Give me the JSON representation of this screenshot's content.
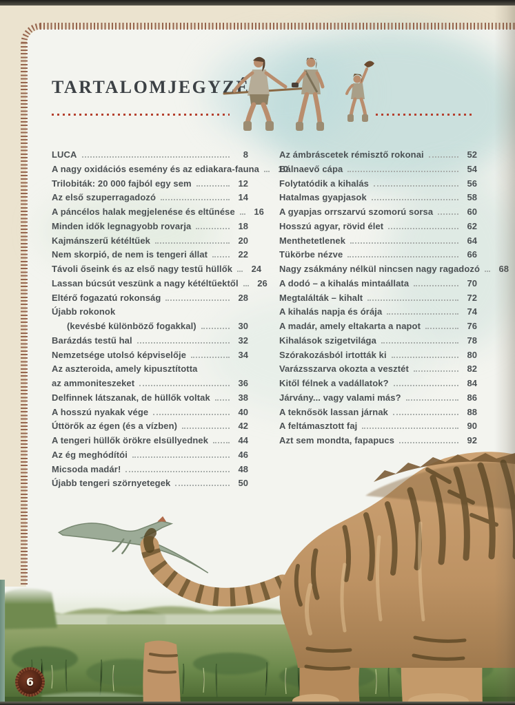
{
  "header": {
    "title": "TARTALOMJEGYZÉK"
  },
  "footer": {
    "page_number": "6"
  },
  "colors": {
    "paper_margin": "#ebe3cf",
    "page_background": "#f3f4ef",
    "stitch_border": "#96654e",
    "accent_dotted_line": "#b5402e",
    "text": "#4b5053",
    "badge": "#5d2b1b"
  },
  "illustrations": [
    {
      "name": "prehistoric-humans-illustration",
      "desc": "three early humans walking with spear and tools"
    },
    {
      "name": "pterosaur-illustration",
      "desc": "pterosaur gliding"
    },
    {
      "name": "grassland-illustration",
      "desc": "misty green marsh grassland panorama"
    },
    {
      "name": "sabertooth-cat-illustration",
      "desc": "hindquarters and curled tail of a striped sabertooth cat"
    },
    {
      "name": "ammonite-page-badge",
      "desc": "fossil-like circle holding the page number"
    }
  ],
  "toc": {
    "left": [
      {
        "label": "LUCA",
        "page": "8",
        "leader": true,
        "indent": false
      },
      {
        "label": "A nagy oxidációs esemény és az ediakara-fauna",
        "page": "10",
        "leader": true,
        "indent": false
      },
      {
        "label": "Trilobiták: 20 000 fajból egy sem",
        "page": "12",
        "leader": true,
        "indent": false
      },
      {
        "label": "Az első szuperragadozó",
        "page": "14",
        "leader": true,
        "indent": false
      },
      {
        "label": "A páncélos halak megjelenése és eltűnése",
        "page": "16",
        "leader": true,
        "indent": false
      },
      {
        "label": "Minden idők legnagyobb rovarja",
        "page": "18",
        "leader": true,
        "indent": false
      },
      {
        "label": "Kajmánszerű kétéltűek",
        "page": "20",
        "leader": true,
        "indent": false
      },
      {
        "label": "Nem skorpió, de nem is tengeri állat",
        "page": "22",
        "leader": true,
        "indent": false
      },
      {
        "label": "Távoli őseink és az első nagy testű hüllők",
        "page": "24",
        "leader": true,
        "indent": false
      },
      {
        "label": "Lassan búcsút veszünk a nagy kétéltűektől",
        "page": "26",
        "leader": true,
        "indent": false
      },
      {
        "label": "Eltérő fogazatú rokonság",
        "page": "28",
        "leader": true,
        "indent": false
      },
      {
        "label": "Újabb rokonok",
        "page": "",
        "leader": false,
        "indent": false
      },
      {
        "label": "(kevésbé különböző fogakkal)",
        "page": "30",
        "leader": true,
        "indent": true
      },
      {
        "label": "Barázdás testű hal",
        "page": "32",
        "leader": true,
        "indent": false
      },
      {
        "label": "Nemzetsége utolsó képviselője",
        "page": "34",
        "leader": true,
        "indent": false
      },
      {
        "label": "Az aszteroida, amely kipusztította",
        "page": "",
        "leader": false,
        "indent": false
      },
      {
        "label": "az ammoniteszeket",
        "page": "36",
        "leader": true,
        "indent": false
      },
      {
        "label": "Delfinnek látszanak, de hüllők voltak",
        "page": "38",
        "leader": true,
        "indent": false
      },
      {
        "label": "A hosszú nyakak vége",
        "page": "40",
        "leader": true,
        "indent": false
      },
      {
        "label": "Úttörők az égen (és a vízben)",
        "page": "42",
        "leader": true,
        "indent": false
      },
      {
        "label": "A tengeri hüllők örökre elsüllyednek",
        "page": "44",
        "leader": true,
        "indent": false
      },
      {
        "label": "Az ég meghódítói",
        "page": "46",
        "leader": true,
        "indent": false
      },
      {
        "label": "Micsoda madár!",
        "page": "48",
        "leader": true,
        "indent": false
      },
      {
        "label": "Újabb tengeri szörnyetegek",
        "page": "50",
        "leader": true,
        "indent": false
      }
    ],
    "right": [
      {
        "label": "Az ámbráscetek rémisztő rokonai",
        "page": "52",
        "leader": true,
        "indent": false
      },
      {
        "label": "Bálnaevő cápa",
        "page": "54",
        "leader": true,
        "indent": false
      },
      {
        "label": "Folytatódik a kihalás",
        "page": "56",
        "leader": true,
        "indent": false
      },
      {
        "label": "Hatalmas gyapjasok",
        "page": "58",
        "leader": true,
        "indent": false
      },
      {
        "label": "A gyapjas orrszarvú szomorú sorsa",
        "page": "60",
        "leader": true,
        "indent": false
      },
      {
        "label": "Hosszú agyar, rövid élet",
        "page": "62",
        "leader": true,
        "indent": false
      },
      {
        "label": "Menthetetlenek",
        "page": "64",
        "leader": true,
        "indent": false
      },
      {
        "label": "Tükörbe nézve",
        "page": "66",
        "leader": true,
        "indent": false
      },
      {
        "label": "Nagy zsákmány nélkül nincsen nagy ragadozó",
        "page": "68",
        "leader": true,
        "indent": false
      },
      {
        "label": "A dodó – a kihalás mintaállata",
        "page": "70",
        "leader": true,
        "indent": false
      },
      {
        "label": "Megtalálták – kihalt",
        "page": "72",
        "leader": true,
        "indent": false
      },
      {
        "label": "A kihalás napja és órája",
        "page": "74",
        "leader": true,
        "indent": false
      },
      {
        "label": "A madár, amely eltakarta a napot",
        "page": "76",
        "leader": true,
        "indent": false
      },
      {
        "label": "Kihalások szigetvilága",
        "page": "78",
        "leader": true,
        "indent": false
      },
      {
        "label": "Szórakozásból irtották ki",
        "page": "80",
        "leader": true,
        "indent": false
      },
      {
        "label": "Varázsszarva okozta a vesztét",
        "page": "82",
        "leader": true,
        "indent": false
      },
      {
        "label": "Kitől félnek a vadállatok?",
        "page": "84",
        "leader": true,
        "indent": false
      },
      {
        "label": "Járvány... vagy valami más?",
        "page": "86",
        "leader": true,
        "indent": false
      },
      {
        "label": "A teknősök lassan járnak",
        "page": "88",
        "leader": true,
        "indent": false
      },
      {
        "label": "A feltámasztott faj",
        "page": "90",
        "leader": true,
        "indent": false
      },
      {
        "label": "Azt sem mondta, fapapucs",
        "page": "92",
        "leader": true,
        "indent": false
      }
    ]
  }
}
